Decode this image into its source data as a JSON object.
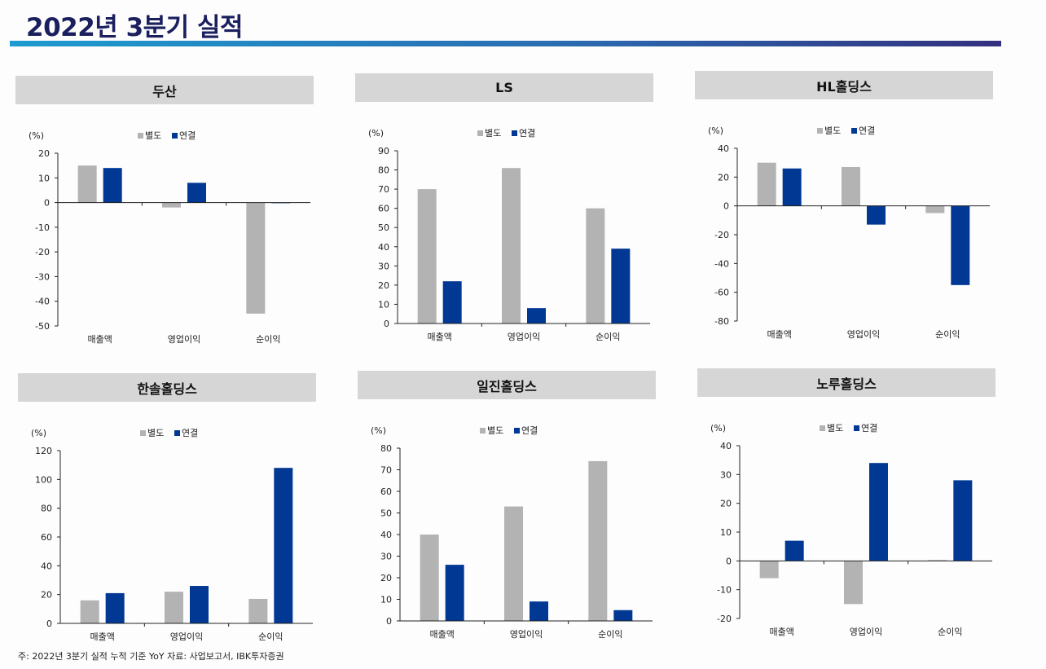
{
  "page": {
    "title": "2022년 3분기 실적",
    "footnote": "주: 2022년 3분기 실적 누적 기준 YoY 자료: 사업보고서, IBK투자증권"
  },
  "colors": {
    "standalone": "#b3b3b3",
    "consolidated": "#003894",
    "header_bg": "#d6d6d6"
  },
  "chart_data": [
    {
      "type": "bar",
      "title": "두산",
      "unit": "(%)",
      "categories": [
        "매출액",
        "영업이익",
        "순이익"
      ],
      "series": [
        {
          "name": "별도",
          "values": [
            15,
            -2,
            -45
          ]
        },
        {
          "name": "연결",
          "values": [
            14,
            8,
            0
          ]
        }
      ],
      "ylim": [
        -50,
        20
      ],
      "yticks": [
        20,
        10,
        0,
        -10,
        -20,
        -30,
        -40,
        -50
      ],
      "legend": "top-center",
      "grid": false
    },
    {
      "type": "bar",
      "title": "LS",
      "unit": "(%)",
      "categories": [
        "매출액",
        "영업이익",
        "순이익"
      ],
      "series": [
        {
          "name": "별도",
          "values": [
            70,
            81,
            60
          ]
        },
        {
          "name": "연결",
          "values": [
            22,
            8,
            39
          ]
        }
      ],
      "ylim": [
        0,
        90
      ],
      "yticks": [
        90,
        80,
        70,
        60,
        50,
        40,
        30,
        20,
        10,
        0
      ],
      "legend": "top-center",
      "grid": false
    },
    {
      "type": "bar",
      "title": "HL홀딩스",
      "unit": "(%)",
      "categories": [
        "매출액",
        "영업이익",
        "순이익"
      ],
      "series": [
        {
          "name": "별도",
          "values": [
            30,
            27,
            -5
          ]
        },
        {
          "name": "연결",
          "values": [
            26,
            -13,
            -55
          ]
        }
      ],
      "ylim": [
        -80,
        40
      ],
      "yticks": [
        40,
        20,
        0,
        -20,
        -40,
        -60,
        -80
      ],
      "legend": "top-center",
      "grid": false
    },
    {
      "type": "bar",
      "title": "한솔홀딩스",
      "unit": "(%)",
      "categories": [
        "매출액",
        "영업이익",
        "순이익"
      ],
      "series": [
        {
          "name": "별도",
          "values": [
            16,
            22,
            17
          ]
        },
        {
          "name": "연결",
          "values": [
            21,
            26,
            108
          ]
        }
      ],
      "ylim": [
        0,
        120
      ],
      "yticks": [
        120,
        100,
        80,
        60,
        40,
        20,
        0
      ],
      "legend": "top-center",
      "grid": false
    },
    {
      "type": "bar",
      "title": "일진홀딩스",
      "unit": "(%)",
      "categories": [
        "매출액",
        "영업이익",
        "순이익"
      ],
      "series": [
        {
          "name": "별도",
          "values": [
            40,
            53,
            74
          ]
        },
        {
          "name": "연결",
          "values": [
            26,
            9,
            5
          ]
        }
      ],
      "ylim": [
        0,
        80
      ],
      "yticks": [
        80,
        70,
        60,
        50,
        40,
        30,
        20,
        10,
        0
      ],
      "legend": "top-center",
      "grid": false
    },
    {
      "type": "bar",
      "title": "노루홀딩스",
      "unit": "(%)",
      "categories": [
        "매출액",
        "영업이익",
        "순이익"
      ],
      "series": [
        {
          "name": "별도",
          "values": [
            -6,
            -15,
            0.3
          ]
        },
        {
          "name": "연결",
          "values": [
            7,
            34,
            28
          ]
        }
      ],
      "ylim": [
        -20,
        40
      ],
      "yticks": [
        40,
        30,
        20,
        10,
        0,
        -10,
        -20
      ],
      "legend": "top-center",
      "grid": false
    }
  ]
}
